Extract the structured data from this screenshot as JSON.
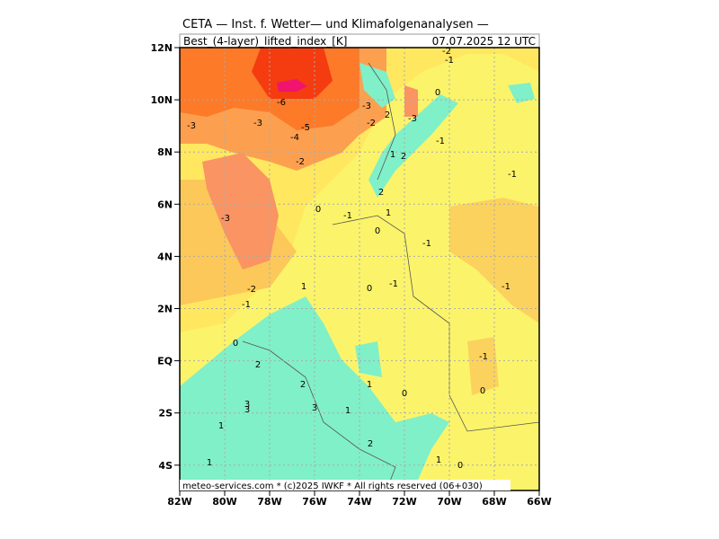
{
  "header": {
    "title": "CETA — Inst. f. Wetter— und Klimafolgenanalysen —",
    "subtitle_left": "Best_(4-layer)_lifted_index_[K]",
    "subtitle_right": "07.07.2025  12 UTC"
  },
  "map": {
    "lat_labels": [
      "12N",
      "10N",
      "8N",
      "6N",
      "4N",
      "2N",
      "EQ",
      "2S",
      "4S"
    ],
    "lon_labels": [
      "82W",
      "80W",
      "78W",
      "76W",
      "74W",
      "72W",
      "70W",
      "68W",
      "66W"
    ],
    "contour_labels": [
      "-3",
      "-6",
      "-3",
      "-5",
      "-4",
      "-2",
      "-3",
      "-3",
      "2",
      "-3",
      "-2",
      "0",
      "-2",
      "-1",
      "-1",
      "1",
      "2",
      "2",
      "-1",
      "0",
      "-1",
      "1",
      "0",
      "-1",
      "-1",
      "0",
      "1",
      "-2",
      "-1",
      "-1",
      "0",
      "2",
      "-1",
      "2",
      "1",
      "0",
      "0",
      "3",
      "3",
      "3",
      "1",
      "1",
      "2",
      "1",
      "0",
      "1"
    ]
  },
  "footer": "meteo-services.com * (c)2025 IWKF * All rights reserved (06+030)"
}
